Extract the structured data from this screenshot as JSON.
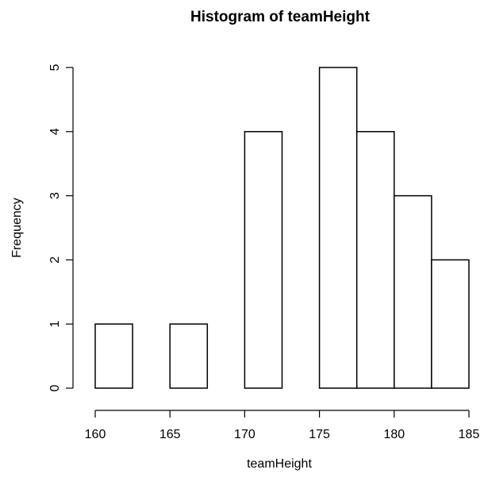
{
  "chart_data": {
    "type": "bar",
    "title": "Histogram of teamHeight",
    "xlabel": "teamHeight",
    "ylabel": "Frequency",
    "bins": [
      {
        "start": 160,
        "end": 162.5,
        "count": 1
      },
      {
        "start": 162.5,
        "end": 165,
        "count": 0
      },
      {
        "start": 165,
        "end": 167.5,
        "count": 1
      },
      {
        "start": 167.5,
        "end": 170,
        "count": 0
      },
      {
        "start": 170,
        "end": 172.5,
        "count": 4
      },
      {
        "start": 172.5,
        "end": 175,
        "count": 0
      },
      {
        "start": 175,
        "end": 177.5,
        "count": 5
      },
      {
        "start": 177.5,
        "end": 180,
        "count": 4
      },
      {
        "start": 180,
        "end": 182.5,
        "count": 3
      },
      {
        "start": 182.5,
        "end": 185,
        "count": 2
      }
    ],
    "xlim": [
      160,
      185
    ],
    "ylim": [
      0,
      5
    ],
    "x_ticks": [
      "160",
      "165",
      "170",
      "175",
      "180",
      "185"
    ],
    "y_ticks": [
      "0",
      "1",
      "2",
      "3",
      "4",
      "5"
    ],
    "grid": false,
    "legend": "none",
    "colors": {
      "bar_fill": "#ffffff",
      "bar_stroke": "#000000",
      "axis": "#000000",
      "background": "#ffffff"
    }
  }
}
